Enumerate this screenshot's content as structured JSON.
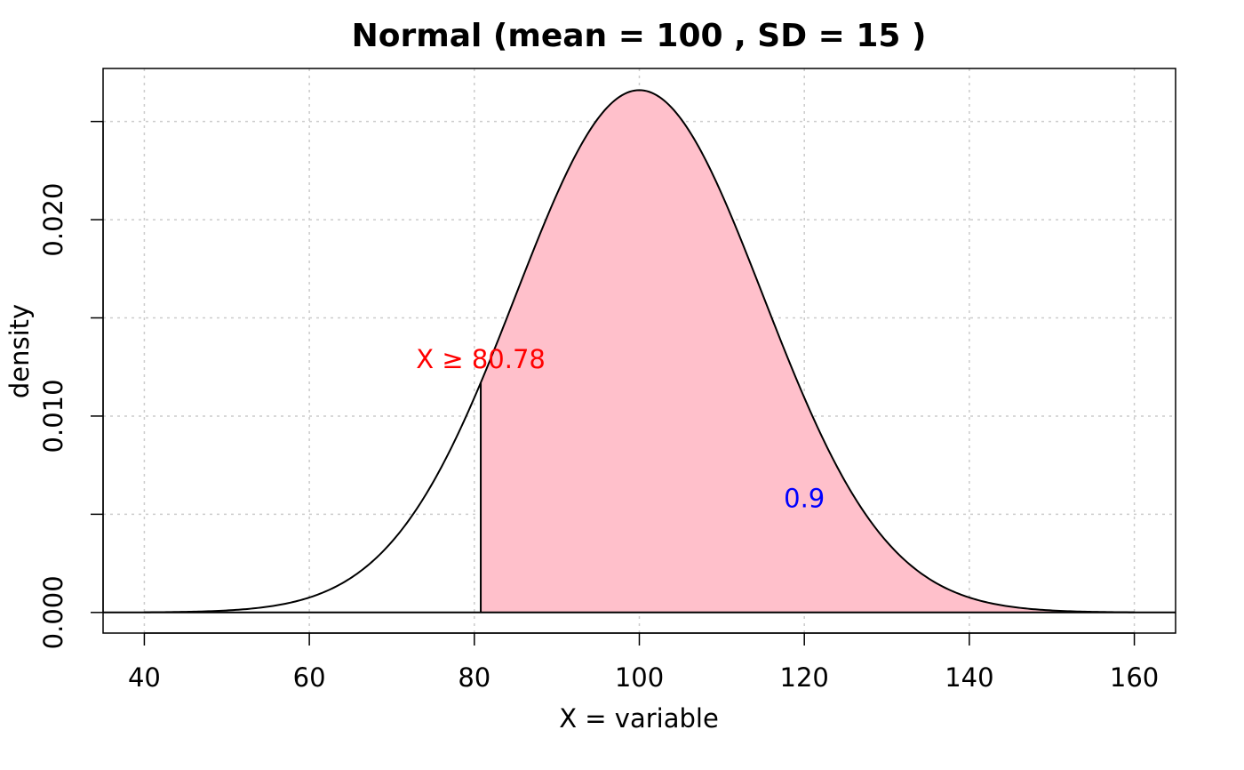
{
  "chart_data": {
    "type": "area",
    "distribution": "normal",
    "mean": 100,
    "sd": 15,
    "title": "Normal (mean = 100 , SD =  15 )",
    "xlabel": "X  = variable",
    "ylabel": "density",
    "xlim": [
      35,
      165
    ],
    "ylim": [
      -0.00105,
      0.0277
    ],
    "x_ticks": [
      40,
      60,
      80,
      100,
      120,
      140,
      160
    ],
    "x_tick_labels": [
      "40",
      "60",
      "80",
      "100",
      "120",
      "140",
      "160"
    ],
    "y_ticks": [
      0.0,
      0.005,
      0.01,
      0.015,
      0.02,
      0.025
    ],
    "y_tick_labels": [
      "0.000",
      "",
      "0.010",
      "",
      "0.020",
      ""
    ],
    "curve_range": [
      40,
      160
    ],
    "grid": true,
    "shaded_region": {
      "from": 80.78,
      "to": 160,
      "color": "#FFC0CB",
      "probability": 0.9
    },
    "annotations": [
      {
        "text": "X  ≥  80.78",
        "x": 80.78,
        "y": 0.0129,
        "color": "#FF0000"
      },
      {
        "text": "0.9",
        "x": 120,
        "y": 0.0058,
        "color": "#0000FF"
      }
    ]
  }
}
